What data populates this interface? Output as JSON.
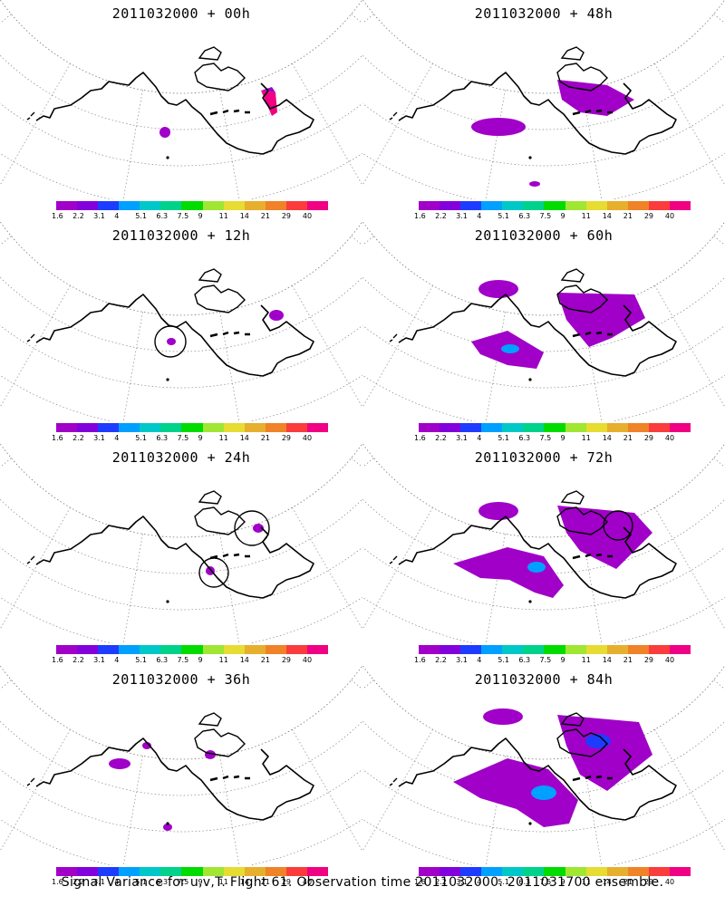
{
  "panels": [
    {
      "title": "2011032000 + 00h"
    },
    {
      "title": "2011032000 + 48h"
    },
    {
      "title": "2011032000 + 12h"
    },
    {
      "title": "2011032000 + 60h"
    },
    {
      "title": "2011032000 + 24h"
    },
    {
      "title": "2011032000 + 72h"
    },
    {
      "title": "2011032000 + 36h"
    },
    {
      "title": "2011032000 + 84h"
    }
  ],
  "legend": {
    "labels": [
      "1.6",
      "2.2",
      "3.1",
      "4",
      "5.1",
      "6.3",
      "7.5",
      "9",
      "11",
      "14",
      "21",
      "29",
      "40"
    ],
    "colors": [
      "#a000c8",
      "#8200dc",
      "#1e3cff",
      "#00a0ff",
      "#00c8c8",
      "#00d28c",
      "#00dc00",
      "#a0e632",
      "#e6dc32",
      "#e6af2d",
      "#f08228",
      "#fa3c3c",
      "#f00082"
    ]
  },
  "footer": {
    "caption": "Signal Variance for u,v,T. Flight 61. Observation time 2011032000. 2011031700 ensemble."
  }
}
